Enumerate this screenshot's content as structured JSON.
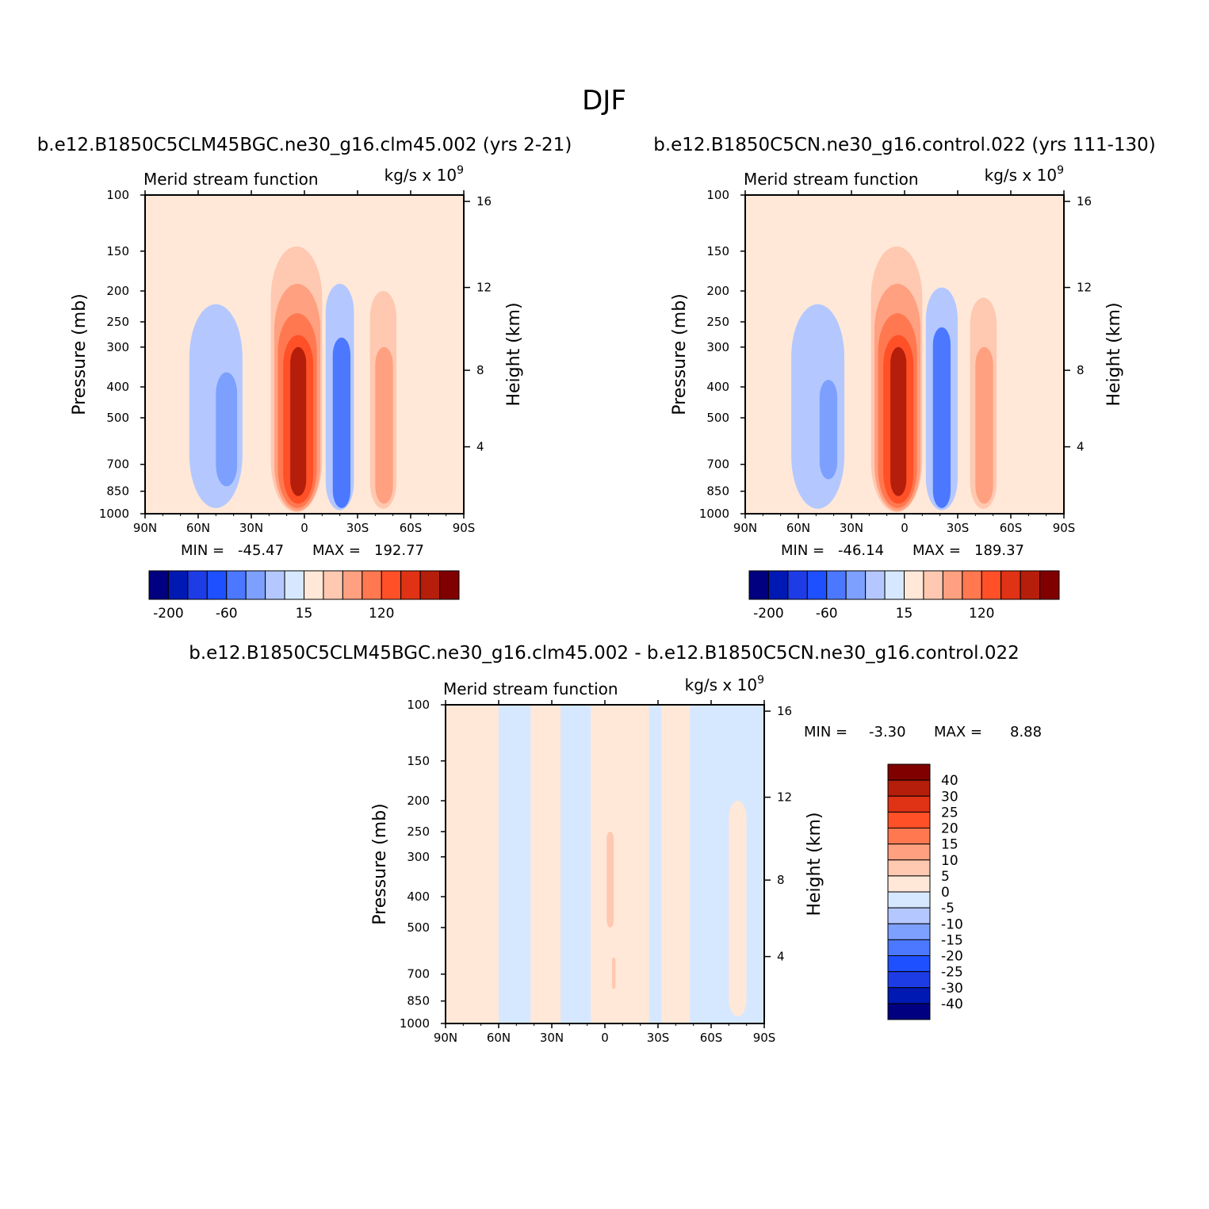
{
  "figure": {
    "title": "DJF",
    "colors": {
      "diverging": [
        "#000080",
        "#0019b3",
        "#1e3ce6",
        "#1e50ff",
        "#4b78ff",
        "#7da0ff",
        "#b4c8ff",
        "#d6e8ff",
        "#ffe8d8",
        "#ffc8b0",
        "#ffa080",
        "#ff7850",
        "#ff5028",
        "#e03214",
        "#b41e0a",
        "#800000"
      ]
    }
  },
  "chart_data": [
    {
      "type": "contour",
      "panel": "top-left",
      "case_title": "b.e12.B1850C5CLM45BGC.ne30_g16.clm45.002 (yrs 2-21)",
      "left_string": "Merid stream function",
      "right_string": "kg/s x 10",
      "right_string_exponent": "9",
      "ylabel": "Pressure (mb)",
      "ylabel_right": "Height (km)",
      "x_ticks": [
        "90N",
        "60N",
        "30N",
        "0",
        "30S",
        "60S",
        "90S"
      ],
      "y_ticks": [
        "100",
        "150",
        "200",
        "250",
        "300",
        "400",
        "500",
        "700",
        "850",
        "1000"
      ],
      "y_right_ticks": [
        "16",
        "12",
        "8",
        "4"
      ],
      "stats": {
        "min_label": "MIN =",
        "min": "-45.47",
        "max_label": "MAX =",
        "max": "192.77"
      },
      "colorbar": {
        "orientation": "horizontal",
        "labels": [
          "-200",
          "-60",
          "15",
          "120"
        ]
      },
      "cells": [
        {
          "lat": [
            65,
            35
          ],
          "p": [
            220,
            960
          ],
          "level": 6
        },
        {
          "lat": [
            50,
            38
          ],
          "p": [
            360,
            820
          ],
          "level": 5
        },
        {
          "lat": [
            20,
            -12
          ],
          "p": [
            115,
            1000
          ],
          "level": 8
        },
        {
          "lat": [
            19,
            -10
          ],
          "p": [
            145,
            990
          ],
          "level": 9
        },
        {
          "lat": [
            17,
            -9
          ],
          "p": [
            190,
            980
          ],
          "level": 10
        },
        {
          "lat": [
            15,
            -7
          ],
          "p": [
            235,
            960
          ],
          "level": 11
        },
        {
          "lat": [
            12,
            -5
          ],
          "p": [
            275,
            930
          ],
          "level": 12
        },
        {
          "lat": [
            8,
            -1
          ],
          "p": [
            300,
            880
          ],
          "level": 14
        },
        {
          "lat": [
            -12,
            -28
          ],
          "p": [
            190,
            975
          ],
          "level": 6
        },
        {
          "lat": [
            -16,
            -26
          ],
          "p": [
            280,
            960
          ],
          "level": 4
        },
        {
          "lat": [
            -37,
            -52
          ],
          "p": [
            200,
            965
          ],
          "level": 9
        },
        {
          "lat": [
            -40,
            -50
          ],
          "p": [
            300,
            930
          ],
          "level": 10
        }
      ]
    },
    {
      "type": "contour",
      "panel": "top-right",
      "case_title": "b.e12.B1850C5CN.ne30_g16.control.022 (yrs 111-130)",
      "left_string": "Merid stream function",
      "right_string": "kg/s x 10",
      "right_string_exponent": "9",
      "ylabel": "Pressure (mb)",
      "ylabel_right": "Height (km)",
      "x_ticks": [
        "90N",
        "60N",
        "30N",
        "0",
        "30S",
        "60S",
        "90S"
      ],
      "y_ticks": [
        "100",
        "150",
        "200",
        "250",
        "300",
        "400",
        "500",
        "700",
        "850",
        "1000"
      ],
      "y_right_ticks": [
        "16",
        "12",
        "8",
        "4"
      ],
      "stats": {
        "min_label": "MIN =",
        "min": "-46.14",
        "max_label": "MAX =",
        "max": "189.37"
      },
      "colorbar": {
        "orientation": "horizontal",
        "labels": [
          "-200",
          "-60",
          "15",
          "120"
        ]
      },
      "cells": [
        {
          "lat": [
            64,
            34
          ],
          "p": [
            220,
            965
          ],
          "level": 6
        },
        {
          "lat": [
            48,
            38
          ],
          "p": [
            380,
            780
          ],
          "level": 5
        },
        {
          "lat": [
            20,
            -12
          ],
          "p": [
            115,
            1000
          ],
          "level": 8
        },
        {
          "lat": [
            19,
            -10
          ],
          "p": [
            145,
            990
          ],
          "level": 9
        },
        {
          "lat": [
            17,
            -9
          ],
          "p": [
            190,
            980
          ],
          "level": 10
        },
        {
          "lat": [
            15,
            -7
          ],
          "p": [
            235,
            960
          ],
          "level": 11
        },
        {
          "lat": [
            12,
            -5
          ],
          "p": [
            275,
            930
          ],
          "level": 12
        },
        {
          "lat": [
            8,
            -1
          ],
          "p": [
            300,
            880
          ],
          "level": 14
        },
        {
          "lat": [
            -12,
            -30
          ],
          "p": [
            195,
            975
          ],
          "level": 6
        },
        {
          "lat": [
            -16,
            -26
          ],
          "p": [
            260,
            960
          ],
          "level": 4
        },
        {
          "lat": [
            -37,
            -52
          ],
          "p": [
            210,
            965
          ],
          "level": 9
        },
        {
          "lat": [
            -40,
            -50
          ],
          "p": [
            300,
            930
          ],
          "level": 10
        }
      ]
    },
    {
      "type": "contour",
      "panel": "bottom",
      "case_title": "b.e12.B1850C5CLM45BGC.ne30_g16.clm45.002 - b.e12.B1850C5CN.ne30_g16.control.022",
      "left_string": "Merid stream function",
      "right_string": "kg/s x 10",
      "right_string_exponent": "9",
      "ylabel": "Pressure (mb)",
      "ylabel_right": "Height (km)",
      "x_ticks": [
        "90N",
        "60N",
        "30N",
        "0",
        "30S",
        "60S",
        "90S"
      ],
      "y_ticks": [
        "100",
        "150",
        "200",
        "250",
        "300",
        "400",
        "500",
        "700",
        "850",
        "1000"
      ],
      "y_right_ticks": [
        "16",
        "12",
        "8",
        "4"
      ],
      "stats": {
        "min_label": "MIN =",
        "min": "-3.30",
        "max_label": "MAX =",
        "max": "8.88"
      },
      "colorbar": {
        "orientation": "vertical",
        "labels": [
          "40",
          "30",
          "25",
          "20",
          "15",
          "10",
          "5",
          "0",
          "-5",
          "-10",
          "-15",
          "-20",
          "-25",
          "-30",
          "-40"
        ]
      },
      "bands": [
        {
          "lat": [
            90,
            60
          ],
          "level": 8
        },
        {
          "lat": [
            60,
            42
          ],
          "level": 7
        },
        {
          "lat": [
            42,
            25
          ],
          "level": 8
        },
        {
          "lat": [
            25,
            8
          ],
          "level": 7
        },
        {
          "lat": [
            8,
            -25
          ],
          "level": 8
        },
        {
          "lat": [
            -25,
            -32
          ],
          "level": 7
        },
        {
          "lat": [
            -32,
            -48
          ],
          "level": 8
        },
        {
          "lat": [
            -48,
            -90
          ],
          "level": 7
        }
      ],
      "cells": [
        {
          "lat": [
            -70,
            -80
          ],
          "p": [
            200,
            950
          ],
          "level": 8
        },
        {
          "lat": [
            -1,
            -5
          ],
          "p": [
            250,
            500
          ],
          "level": 9
        },
        {
          "lat": [
            -4,
            -6
          ],
          "p": [
            620,
            780
          ],
          "level": 9
        }
      ]
    }
  ]
}
